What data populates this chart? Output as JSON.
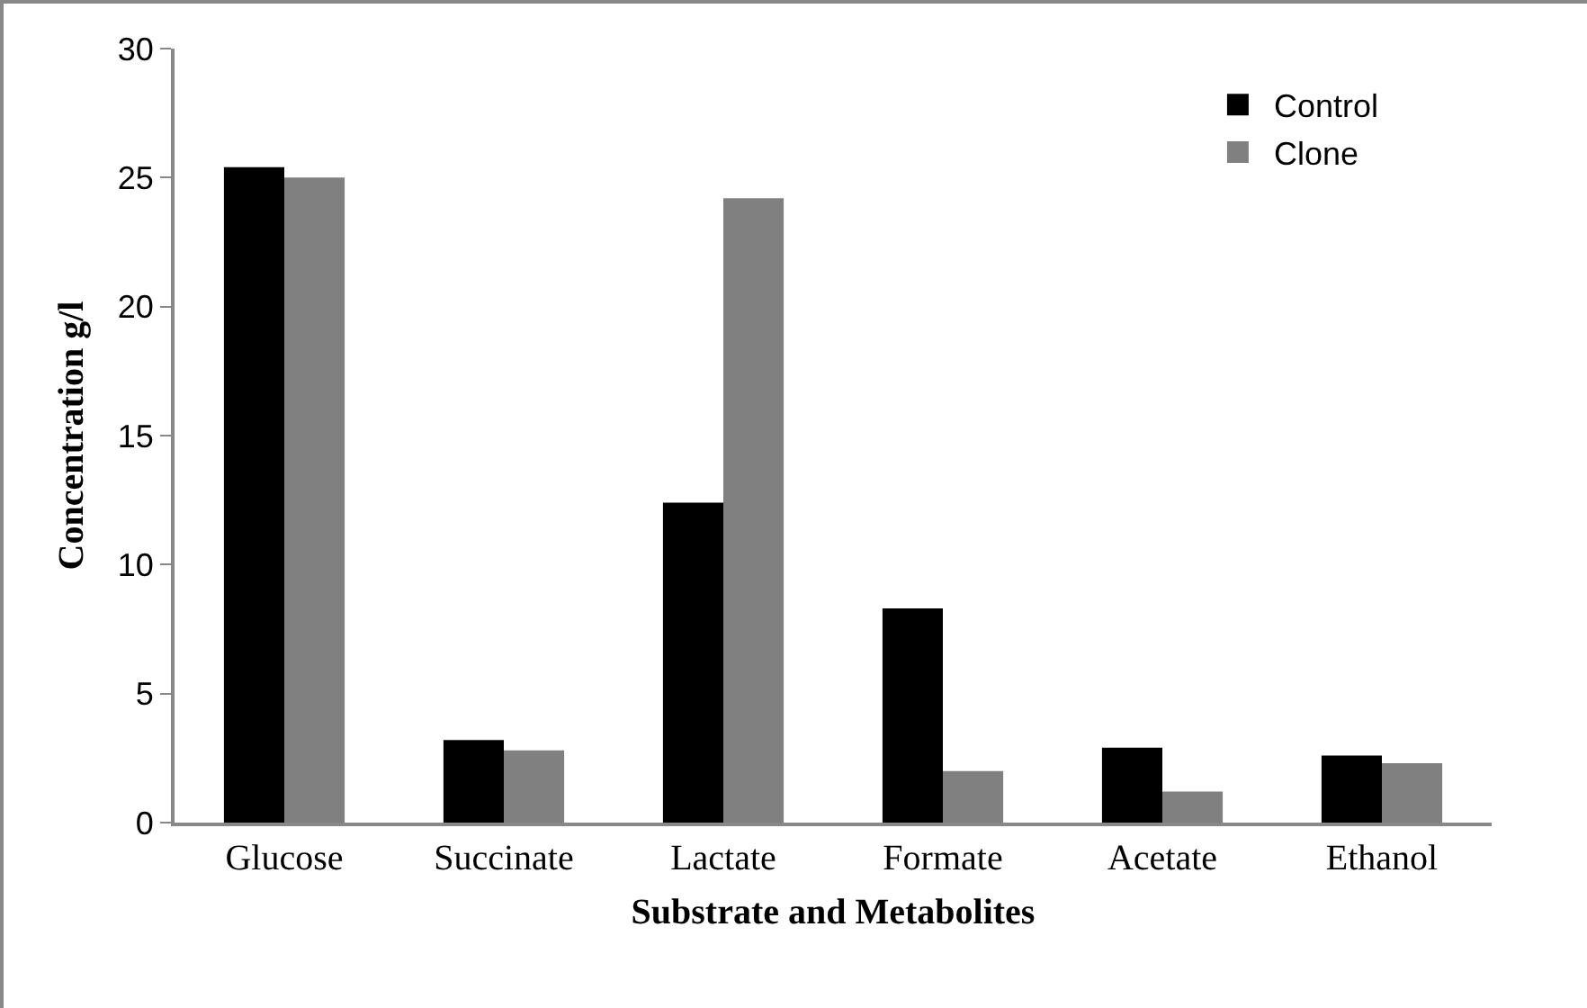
{
  "chart_data": {
    "type": "bar",
    "xlabel": "Substrate and Metabolites",
    "ylabel": "Concentration g/l",
    "categories": [
      "Glucose",
      "Succinate",
      "Lactate",
      "Formate",
      "Acetate",
      "Ethanol"
    ],
    "series": [
      {
        "name": "Control",
        "color": "#000000",
        "values": [
          25.4,
          3.2,
          12.4,
          8.3,
          2.9,
          2.6
        ]
      },
      {
        "name": "Clone",
        "color": "#808080",
        "values": [
          25.0,
          2.8,
          24.2,
          2.0,
          1.2,
          2.3
        ]
      }
    ],
    "ylim": [
      0,
      30
    ],
    "yticks": [
      0,
      5,
      10,
      15,
      20,
      25,
      30
    ],
    "grid": false,
    "legend": "top right"
  }
}
